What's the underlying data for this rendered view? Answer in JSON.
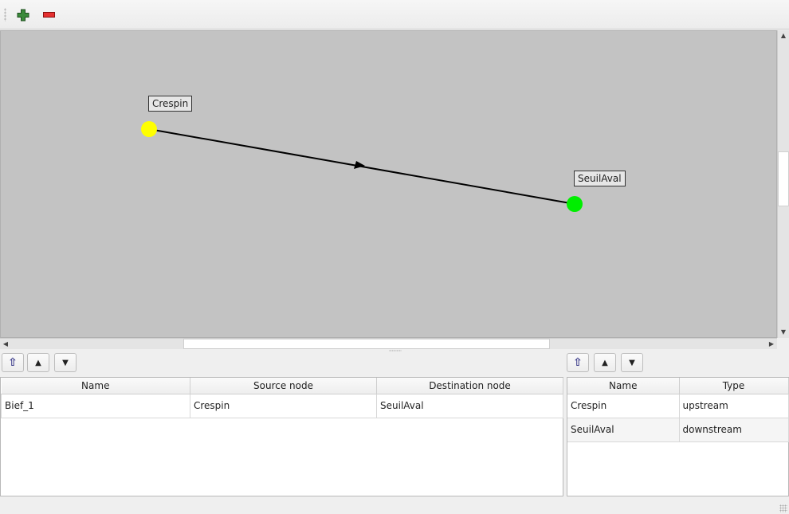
{
  "toolbar": {
    "add_icon": "plus-icon",
    "remove_icon": "minus-icon",
    "add_color": "#3a8a3a",
    "remove_color": "#e53030"
  },
  "graph": {
    "background": "#c3c3c3",
    "nodes": [
      {
        "name": "Crespin",
        "color": "#ffff00"
      },
      {
        "name": "SeuilAval",
        "color": "#00ee00"
      }
    ],
    "edges": [
      {
        "name": "Bief_1",
        "from": "Crespin",
        "to": "SeuilAval"
      }
    ]
  },
  "reaches_table": {
    "columns": [
      "Name",
      "Source node",
      "Destination node"
    ],
    "rows": [
      [
        "Bief_1",
        "Crespin",
        "SeuilAval"
      ]
    ]
  },
  "nodes_table": {
    "columns": [
      "Name",
      "Type"
    ],
    "rows": [
      [
        "Crespin",
        "upstream"
      ],
      [
        "SeuilAval",
        "downstream"
      ]
    ]
  },
  "buttons": {
    "sort_icon": "sort-icon",
    "up_icon": "arrow-up-icon",
    "down_icon": "arrow-down-icon"
  }
}
